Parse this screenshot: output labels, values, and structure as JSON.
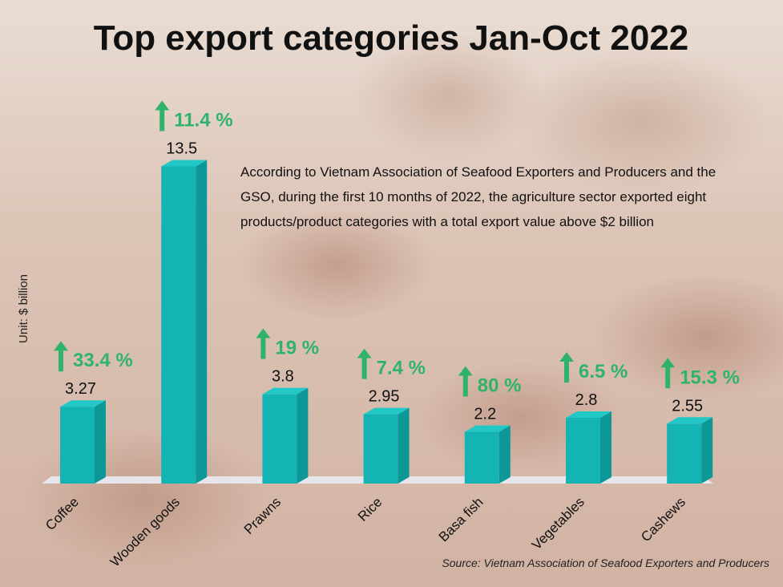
{
  "chart_data": {
    "type": "bar",
    "title": "Top export categories Jan-Oct 2022",
    "ylabel": "Unit: $ billion",
    "categories": [
      "Coffee",
      "Wooden goods",
      "Prawns",
      "Rice",
      "Basa fish",
      "Vegetables",
      "Cashews"
    ],
    "values": [
      3.27,
      13.5,
      3.8,
      2.95,
      2.2,
      2.8,
      2.55
    ],
    "value_labels": [
      "3.27",
      "13.5",
      "3.8",
      "2.95",
      "2.2",
      "2.8",
      "2.55"
    ],
    "growth_labels": [
      "33.4 %",
      "11.4 %",
      "19 %",
      "7.4 %",
      "80 %",
      "6.5 %",
      "15.3 %"
    ],
    "ylim": [
      0,
      14
    ],
    "grid": false,
    "annotation": [
      "According to Vietnam Association of Seafood Exporters and Producers and the",
      "GSO, during the first 10 months of 2022, the agriculture sector exported eight",
      "products/product categories with a total export value above $2 billion"
    ],
    "source": "Source: Vietnam Association of Seafood Exporters and Producers"
  },
  "colors": {
    "bar_front": "#13b4b3",
    "bar_side": "#0d9797",
    "bar_top": "#22c8c6",
    "arrow": "#2fb36b",
    "floor": "#e6e6ea"
  }
}
